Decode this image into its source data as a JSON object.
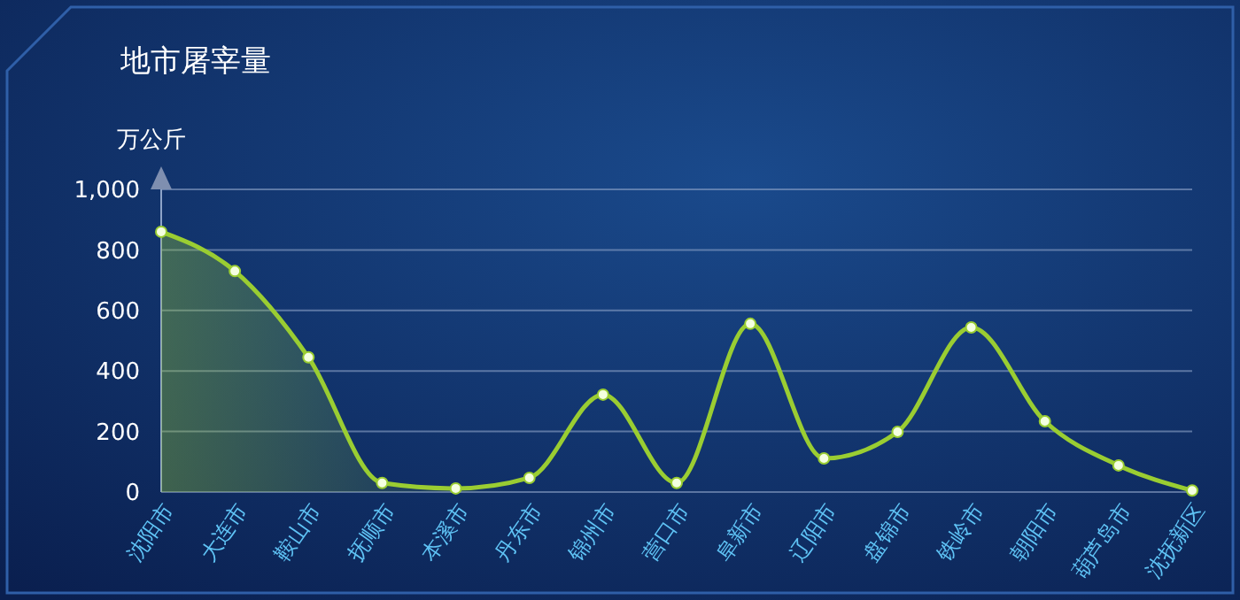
{
  "chart_data": {
    "type": "area",
    "title": "地市屠宰量",
    "ylabel": "万公斤",
    "categories": [
      "沈阳市",
      "大连市",
      "鞍山市",
      "抚顺市",
      "本溪市",
      "丹东市",
      "锦州市",
      "营口市",
      "阜新市",
      "辽阳市",
      "盘锦市",
      "铁岭市",
      "朝阳市",
      "葫芦岛市",
      "沈抚新区"
    ],
    "series": [
      {
        "color": "#9acd32",
        "values": [
          860,
          730,
          445,
          30,
          12,
          47,
          322,
          30,
          556,
          111,
          199,
          544,
          234,
          88,
          5
        ]
      }
    ],
    "ylim": [
      0,
      1000
    ],
    "yticks": [
      0,
      200,
      400,
      600,
      800,
      {
        "value": 1000,
        "label": "1,000"
      }
    ],
    "grid": "y",
    "marker": "circle"
  }
}
